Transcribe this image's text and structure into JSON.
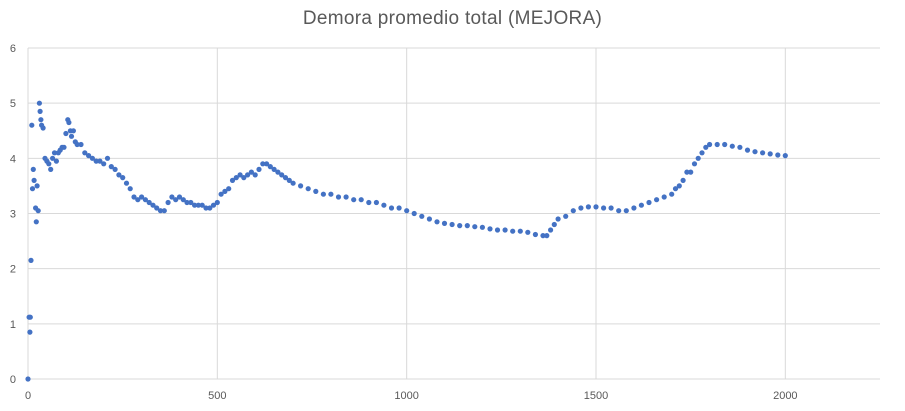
{
  "chart_data": {
    "type": "scatter",
    "title": "Demora promedio total (MEJORA)",
    "xlabel": "",
    "ylabel": "",
    "xlim": [
      0,
      2250
    ],
    "ylim": [
      0,
      6
    ],
    "xticks": [
      "0",
      "500",
      "1000",
      "1500",
      "2000"
    ],
    "yticks": [
      "0",
      "1",
      "2",
      "3",
      "4",
      "5",
      "6"
    ],
    "grid": true,
    "marker_color": "#4472C4",
    "series": [
      {
        "points": [
          [
            0,
            0
          ],
          [
            3,
            1.12
          ],
          [
            5,
            0.85
          ],
          [
            6,
            1.12
          ],
          [
            8,
            2.15
          ],
          [
            10,
            4.6
          ],
          [
            12,
            3.45
          ],
          [
            14,
            3.8
          ],
          [
            16,
            3.6
          ],
          [
            20,
            3.1
          ],
          [
            22,
            2.85
          ],
          [
            24,
            3.5
          ],
          [
            27,
            3.05
          ],
          [
            30,
            5.0
          ],
          [
            32,
            4.85
          ],
          [
            34,
            4.7
          ],
          [
            36,
            4.6
          ],
          [
            40,
            4.55
          ],
          [
            45,
            4.0
          ],
          [
            50,
            3.95
          ],
          [
            55,
            3.9
          ],
          [
            60,
            3.8
          ],
          [
            65,
            4.0
          ],
          [
            70,
            4.1
          ],
          [
            75,
            3.95
          ],
          [
            80,
            4.1
          ],
          [
            85,
            4.15
          ],
          [
            90,
            4.2
          ],
          [
            95,
            4.2
          ],
          [
            100,
            4.45
          ],
          [
            105,
            4.7
          ],
          [
            108,
            4.65
          ],
          [
            112,
            4.5
          ],
          [
            115,
            4.4
          ],
          [
            120,
            4.5
          ],
          [
            125,
            4.3
          ],
          [
            130,
            4.25
          ],
          [
            140,
            4.25
          ],
          [
            150,
            4.1
          ],
          [
            160,
            4.05
          ],
          [
            170,
            4.0
          ],
          [
            180,
            3.95
          ],
          [
            190,
            3.95
          ],
          [
            200,
            3.9
          ],
          [
            210,
            4.0
          ],
          [
            220,
            3.85
          ],
          [
            230,
            3.8
          ],
          [
            240,
            3.7
          ],
          [
            250,
            3.65
          ],
          [
            260,
            3.55
          ],
          [
            270,
            3.45
          ],
          [
            280,
            3.3
          ],
          [
            290,
            3.25
          ],
          [
            300,
            3.3
          ],
          [
            310,
            3.25
          ],
          [
            320,
            3.2
          ],
          [
            330,
            3.15
          ],
          [
            340,
            3.1
          ],
          [
            350,
            3.05
          ],
          [
            360,
            3.05
          ],
          [
            370,
            3.2
          ],
          [
            380,
            3.3
          ],
          [
            390,
            3.25
          ],
          [
            400,
            3.3
          ],
          [
            410,
            3.25
          ],
          [
            420,
            3.2
          ],
          [
            430,
            3.2
          ],
          [
            440,
            3.15
          ],
          [
            450,
            3.15
          ],
          [
            460,
            3.15
          ],
          [
            470,
            3.1
          ],
          [
            480,
            3.1
          ],
          [
            490,
            3.15
          ],
          [
            500,
            3.2
          ],
          [
            510,
            3.35
          ],
          [
            520,
            3.4
          ],
          [
            530,
            3.45
          ],
          [
            540,
            3.6
          ],
          [
            550,
            3.65
          ],
          [
            560,
            3.7
          ],
          [
            570,
            3.65
          ],
          [
            580,
            3.7
          ],
          [
            590,
            3.75
          ],
          [
            600,
            3.7
          ],
          [
            610,
            3.8
          ],
          [
            620,
            3.9
          ],
          [
            630,
            3.9
          ],
          [
            640,
            3.85
          ],
          [
            650,
            3.8
          ],
          [
            660,
            3.75
          ],
          [
            670,
            3.7
          ],
          [
            680,
            3.65
          ],
          [
            690,
            3.6
          ],
          [
            700,
            3.55
          ],
          [
            720,
            3.5
          ],
          [
            740,
            3.45
          ],
          [
            760,
            3.4
          ],
          [
            780,
            3.35
          ],
          [
            800,
            3.35
          ],
          [
            820,
            3.3
          ],
          [
            840,
            3.3
          ],
          [
            860,
            3.25
          ],
          [
            880,
            3.25
          ],
          [
            900,
            3.2
          ],
          [
            920,
            3.2
          ],
          [
            940,
            3.15
          ],
          [
            960,
            3.1
          ],
          [
            980,
            3.1
          ],
          [
            1000,
            3.05
          ],
          [
            1020,
            3.0
          ],
          [
            1040,
            2.95
          ],
          [
            1060,
            2.9
          ],
          [
            1080,
            2.85
          ],
          [
            1100,
            2.82
          ],
          [
            1120,
            2.8
          ],
          [
            1140,
            2.78
          ],
          [
            1160,
            2.78
          ],
          [
            1180,
            2.76
          ],
          [
            1200,
            2.75
          ],
          [
            1220,
            2.72
          ],
          [
            1240,
            2.7
          ],
          [
            1260,
            2.7
          ],
          [
            1280,
            2.68
          ],
          [
            1300,
            2.68
          ],
          [
            1320,
            2.66
          ],
          [
            1340,
            2.62
          ],
          [
            1360,
            2.6
          ],
          [
            1370,
            2.6
          ],
          [
            1380,
            2.7
          ],
          [
            1390,
            2.8
          ],
          [
            1400,
            2.9
          ],
          [
            1420,
            2.95
          ],
          [
            1440,
            3.05
          ],
          [
            1460,
            3.1
          ],
          [
            1480,
            3.12
          ],
          [
            1500,
            3.12
          ],
          [
            1520,
            3.1
          ],
          [
            1540,
            3.1
          ],
          [
            1560,
            3.05
          ],
          [
            1580,
            3.05
          ],
          [
            1600,
            3.1
          ],
          [
            1620,
            3.15
          ],
          [
            1640,
            3.2
          ],
          [
            1660,
            3.25
          ],
          [
            1680,
            3.3
          ],
          [
            1700,
            3.35
          ],
          [
            1710,
            3.45
          ],
          [
            1720,
            3.5
          ],
          [
            1730,
            3.6
          ],
          [
            1740,
            3.75
          ],
          [
            1750,
            3.75
          ],
          [
            1760,
            3.9
          ],
          [
            1770,
            4.0
          ],
          [
            1780,
            4.1
          ],
          [
            1790,
            4.2
          ],
          [
            1800,
            4.25
          ],
          [
            1820,
            4.25
          ],
          [
            1840,
            4.25
          ],
          [
            1860,
            4.22
          ],
          [
            1880,
            4.2
          ],
          [
            1900,
            4.15
          ],
          [
            1920,
            4.12
          ],
          [
            1940,
            4.1
          ],
          [
            1960,
            4.08
          ],
          [
            1980,
            4.06
          ],
          [
            2000,
            4.05
          ]
        ]
      }
    ]
  }
}
